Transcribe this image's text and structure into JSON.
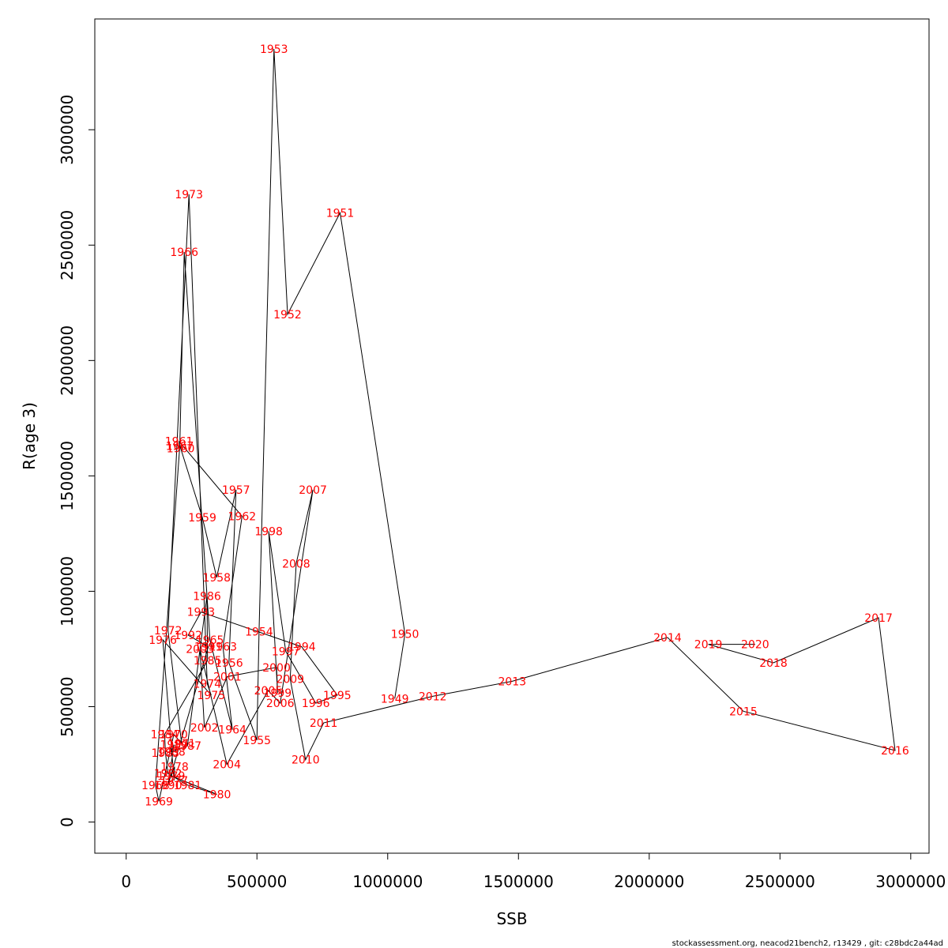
{
  "chart_data": {
    "type": "line",
    "title": "",
    "xlabel": "SSB",
    "ylabel": "R(age 3)",
    "xlim": [
      -120000,
      3070000
    ],
    "ylim": [
      -135000,
      3480000
    ],
    "x_ticks": [
      0,
      500000,
      1000000,
      1500000,
      2000000,
      2500000,
      3000000
    ],
    "x_tick_labels": [
      "0",
      "500000",
      "1000000",
      "1500000",
      "2000000",
      "2500000",
      "3000000"
    ],
    "y_ticks": [
      0,
      500000,
      1000000,
      1500000,
      2000000,
      2500000,
      3000000
    ],
    "y_tick_labels": [
      "0",
      "500000",
      "1000000",
      "1500000",
      "2000000",
      "2500000",
      "3000000"
    ],
    "line_color": "#000000",
    "label_color": "#ff0000",
    "footer": "stockassessment.org, neacod21bench2, r13429 , git: c28bdc2a44ad",
    "points": [
      {
        "year": "1949",
        "ssb": 1027000,
        "r": 535000
      },
      {
        "year": "1950",
        "ssb": 1066000,
        "r": 815000
      },
      {
        "year": "1951",
        "ssb": 818000,
        "r": 2640000
      },
      {
        "year": "1952",
        "ssb": 617000,
        "r": 2200000
      },
      {
        "year": "1953",
        "ssb": 565000,
        "r": 3350000
      },
      {
        "year": "1954",
        "ssb": 508000,
        "r": 825000
      },
      {
        "year": "1955",
        "ssb": 500000,
        "r": 355000
      },
      {
        "year": "1956",
        "ssb": 393000,
        "r": 690000
      },
      {
        "year": "1957",
        "ssb": 420000,
        "r": 1440000
      },
      {
        "year": "1958",
        "ssb": 346000,
        "r": 1060000
      },
      {
        "year": "1959",
        "ssb": 291000,
        "r": 1320000
      },
      {
        "year": "1960",
        "ssb": 208000,
        "r": 1620000
      },
      {
        "year": "1961",
        "ssb": 202000,
        "r": 1650000
      },
      {
        "year": "1962",
        "ssb": 443000,
        "r": 1325000
      },
      {
        "year": "1963",
        "ssb": 370000,
        "r": 760000
      },
      {
        "year": "1964",
        "ssb": 406000,
        "r": 400000
      },
      {
        "year": "1965",
        "ssb": 320000,
        "r": 790000
      },
      {
        "year": "1966",
        "ssb": 222000,
        "r": 2470000
      },
      {
        "year": "1967",
        "ssb": 205000,
        "r": 1630000
      },
      {
        "year": "1968",
        "ssb": 112000,
        "r": 160000
      },
      {
        "year": "1969",
        "ssb": 125000,
        "r": 90000
      },
      {
        "year": "1970",
        "ssb": 182000,
        "r": 380000
      },
      {
        "year": "1971",
        "ssb": 212000,
        "r": 340000
      },
      {
        "year": "1972",
        "ssb": 160000,
        "r": 830000
      },
      {
        "year": "1973",
        "ssb": 240000,
        "r": 2720000
      },
      {
        "year": "1974",
        "ssb": 310000,
        "r": 600000
      },
      {
        "year": "1975",
        "ssb": 325000,
        "r": 550000
      },
      {
        "year": "1976",
        "ssb": 140000,
        "r": 790000
      },
      {
        "year": "1977",
        "ssb": 183000,
        "r": 180000
      },
      {
        "year": "1978",
        "ssb": 185000,
        "r": 240000
      },
      {
        "year": "1979",
        "ssb": 172000,
        "r": 200000
      },
      {
        "year": "1980",
        "ssb": 347000,
        "r": 120000
      },
      {
        "year": "1981",
        "ssb": 235000,
        "r": 160000
      },
      {
        "year": "1982",
        "ssb": 160000,
        "r": 210000
      },
      {
        "year": "1983",
        "ssb": 150000,
        "r": 300000
      },
      {
        "year": "1984",
        "ssb": 147000,
        "r": 380000
      },
      {
        "year": "1985",
        "ssb": 311000,
        "r": 700000
      },
      {
        "year": "1986",
        "ssb": 309000,
        "r": 980000
      },
      {
        "year": "1987",
        "ssb": 234000,
        "r": 330000
      },
      {
        "year": "1988",
        "ssb": 173000,
        "r": 305000
      },
      {
        "year": "1989",
        "ssb": 183000,
        "r": 335000
      },
      {
        "year": "1990",
        "ssb": 160000,
        "r": 160000
      },
      {
        "year": "1991",
        "ssb": 314000,
        "r": 760000
      },
      {
        "year": "1992",
        "ssb": 237000,
        "r": 810000
      },
      {
        "year": "1993",
        "ssb": 286000,
        "r": 910000
      },
      {
        "year": "1994",
        "ssb": 671000,
        "r": 760000
      },
      {
        "year": "1995",
        "ssb": 807000,
        "r": 550000
      },
      {
        "year": "1996",
        "ssb": 725000,
        "r": 515000
      },
      {
        "year": "1997",
        "ssb": 610000,
        "r": 740000
      },
      {
        "year": "1998",
        "ssb": 545000,
        "r": 1260000
      },
      {
        "year": "1999",
        "ssb": 579000,
        "r": 560000
      },
      {
        "year": "2000",
        "ssb": 575000,
        "r": 670000
      },
      {
        "year": "2001",
        "ssb": 387000,
        "r": 630000
      },
      {
        "year": "2002",
        "ssb": 299000,
        "r": 410000
      },
      {
        "year": "2003",
        "ssb": 282000,
        "r": 750000
      },
      {
        "year": "2004",
        "ssb": 385000,
        "r": 250000
      },
      {
        "year": "2005",
        "ssb": 543000,
        "r": 570000
      },
      {
        "year": "2006",
        "ssb": 589000,
        "r": 515000
      },
      {
        "year": "2007",
        "ssb": 714000,
        "r": 1440000
      },
      {
        "year": "2008",
        "ssb": 650000,
        "r": 1120000
      },
      {
        "year": "2009",
        "ssb": 627000,
        "r": 620000
      },
      {
        "year": "2010",
        "ssb": 686000,
        "r": 270000
      },
      {
        "year": "2011",
        "ssb": 755000,
        "r": 430000
      },
      {
        "year": "2012",
        "ssb": 1172000,
        "r": 545000
      },
      {
        "year": "2013",
        "ssb": 1476000,
        "r": 610000
      },
      {
        "year": "2014",
        "ssb": 2070000,
        "r": 800000
      },
      {
        "year": "2015",
        "ssb": 2360000,
        "r": 480000
      },
      {
        "year": "2016",
        "ssb": 2940000,
        "r": 310000
      },
      {
        "year": "2017",
        "ssb": 2877000,
        "r": 885000
      },
      {
        "year": "2018",
        "ssb": 2475000,
        "r": 690000
      },
      {
        "year": "2019",
        "ssb": 2226000,
        "r": 770000
      },
      {
        "year": "2020",
        "ssb": 2405000,
        "r": 770000
      }
    ]
  }
}
